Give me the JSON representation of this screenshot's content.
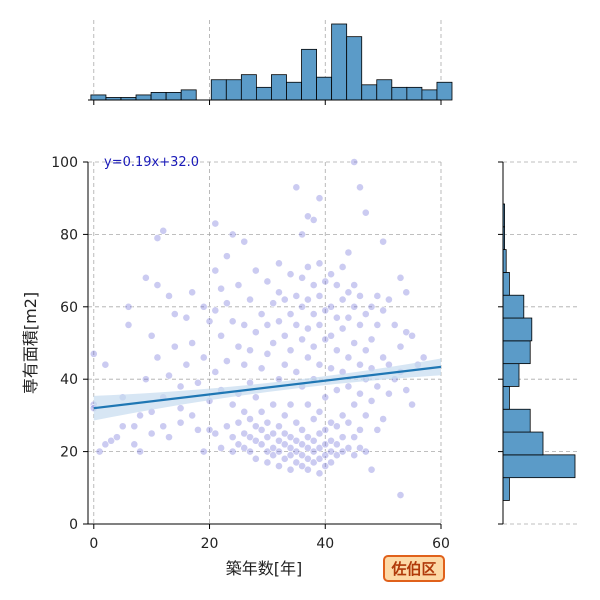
{
  "chart_data": {
    "type": "scatter",
    "xlabel": "築年数[年]",
    "ylabel": "専有面積[m2]",
    "xlim": [
      -1,
      60
    ],
    "ylim": [
      0,
      100
    ],
    "x_ticks": [
      0,
      20,
      40,
      60
    ],
    "y_ticks": [
      0,
      20,
      40,
      60,
      80,
      100
    ],
    "grid": true,
    "regression": {
      "equation": "y=0.19x+32.0",
      "slope": 0.19,
      "intercept": 32.0,
      "color": "#1f77b4",
      "band_color": "#c6dcf0"
    },
    "point_color": "#5050d0",
    "hist_color": "#5b9bc8",
    "badge": {
      "label": "佐伯区",
      "fill": "#fdd9a6",
      "border": "#e0611b",
      "text_color": "#b03a0a"
    },
    "histogram_x": {
      "bin_width": 2.6,
      "start": -0.5,
      "counts": [
        2,
        1,
        1,
        2,
        3,
        3,
        4,
        0,
        8,
        8,
        10,
        5,
        10,
        7,
        20,
        9,
        30,
        25,
        6,
        8,
        5,
        5,
        4,
        7,
        0
      ]
    },
    "histogram_y": {
      "bin_width": 6.3,
      "start": 6.5,
      "counts": [
        4,
        45,
        25,
        17,
        4,
        10,
        17,
        18,
        13,
        4,
        2,
        1,
        1,
        0,
        0
      ]
    },
    "points": [
      [
        0,
        47
      ],
      [
        0,
        33
      ],
      [
        0,
        32
      ],
      [
        1,
        20
      ],
      [
        2,
        22
      ],
      [
        2,
        44
      ],
      [
        3,
        23
      ],
      [
        4,
        24
      ],
      [
        5,
        27
      ],
      [
        5,
        35
      ],
      [
        6,
        60
      ],
      [
        6,
        55
      ],
      [
        7,
        27
      ],
      [
        7,
        22
      ],
      [
        8,
        20
      ],
      [
        8,
        30
      ],
      [
        9,
        68
      ],
      [
        9,
        40
      ],
      [
        10,
        25
      ],
      [
        10,
        52
      ],
      [
        10,
        31
      ],
      [
        11,
        79
      ],
      [
        11,
        66
      ],
      [
        11,
        46
      ],
      [
        12,
        81
      ],
      [
        12,
        27
      ],
      [
        12,
        35
      ],
      [
        13,
        63
      ],
      [
        13,
        41
      ],
      [
        13,
        24
      ],
      [
        14,
        58
      ],
      [
        14,
        49
      ],
      [
        15,
        38
      ],
      [
        15,
        28
      ],
      [
        15,
        32
      ],
      [
        16,
        57
      ],
      [
        16,
        44
      ],
      [
        17,
        64
      ],
      [
        17,
        50
      ],
      [
        17,
        30
      ],
      [
        18,
        39
      ],
      [
        18,
        26
      ],
      [
        19,
        60
      ],
      [
        19,
        46
      ],
      [
        19,
        20
      ],
      [
        20,
        56
      ],
      [
        20,
        34
      ],
      [
        20,
        26
      ],
      [
        21,
        83
      ],
      [
        21,
        70
      ],
      [
        21,
        59
      ],
      [
        21,
        42
      ],
      [
        21,
        25
      ],
      [
        22,
        65
      ],
      [
        22,
        52
      ],
      [
        22,
        37
      ],
      [
        22,
        21
      ],
      [
        23,
        74
      ],
      [
        23,
        61
      ],
      [
        23,
        45
      ],
      [
        23,
        27
      ],
      [
        24,
        80
      ],
      [
        24,
        56
      ],
      [
        24,
        33
      ],
      [
        24,
        24
      ],
      [
        24,
        20
      ],
      [
        25,
        66
      ],
      [
        25,
        49
      ],
      [
        25,
        36
      ],
      [
        25,
        28
      ],
      [
        25,
        22
      ],
      [
        26,
        78
      ],
      [
        26,
        55
      ],
      [
        26,
        44
      ],
      [
        26,
        31
      ],
      [
        26,
        25
      ],
      [
        26,
        21
      ],
      [
        27,
        62
      ],
      [
        27,
        48
      ],
      [
        27,
        39
      ],
      [
        27,
        29
      ],
      [
        27,
        24
      ],
      [
        27,
        20
      ],
      [
        28,
        70
      ],
      [
        28,
        53
      ],
      [
        28,
        35
      ],
      [
        28,
        27
      ],
      [
        28,
        23
      ],
      [
        28,
        18
      ],
      [
        29,
        58
      ],
      [
        29,
        43
      ],
      [
        29,
        31
      ],
      [
        29,
        26
      ],
      [
        29,
        22
      ],
      [
        30,
        67
      ],
      [
        30,
        55
      ],
      [
        30,
        47
      ],
      [
        30,
        28
      ],
      [
        30,
        24
      ],
      [
        30,
        20
      ],
      [
        30,
        17
      ],
      [
        31,
        61
      ],
      [
        31,
        50
      ],
      [
        31,
        33
      ],
      [
        31,
        25
      ],
      [
        31,
        21
      ],
      [
        31,
        19
      ],
      [
        32,
        72
      ],
      [
        32,
        64
      ],
      [
        32,
        56
      ],
      [
        32,
        40
      ],
      [
        32,
        27
      ],
      [
        32,
        23
      ],
      [
        32,
        20
      ],
      [
        32,
        16
      ],
      [
        33,
        62
      ],
      [
        33,
        52
      ],
      [
        33,
        44
      ],
      [
        33,
        30
      ],
      [
        33,
        25
      ],
      [
        33,
        22
      ],
      [
        33,
        18
      ],
      [
        34,
        69
      ],
      [
        34,
        58
      ],
      [
        34,
        48
      ],
      [
        34,
        33
      ],
      [
        34,
        24
      ],
      [
        34,
        21
      ],
      [
        34,
        19
      ],
      [
        34,
        15
      ],
      [
        35,
        93
      ],
      [
        35,
        63
      ],
      [
        35,
        55
      ],
      [
        35,
        42
      ],
      [
        35,
        28
      ],
      [
        35,
        23
      ],
      [
        35,
        20
      ],
      [
        35,
        17
      ],
      [
        36,
        80
      ],
      [
        36,
        68
      ],
      [
        36,
        60
      ],
      [
        36,
        51
      ],
      [
        36,
        38
      ],
      [
        36,
        26
      ],
      [
        36,
        22
      ],
      [
        36,
        19
      ],
      [
        36,
        16
      ],
      [
        37,
        85
      ],
      [
        37,
        71
      ],
      [
        37,
        62
      ],
      [
        37,
        54
      ],
      [
        37,
        46
      ],
      [
        37,
        33
      ],
      [
        37,
        24
      ],
      [
        37,
        21
      ],
      [
        37,
        18
      ],
      [
        37,
        15
      ],
      [
        38,
        84
      ],
      [
        38,
        66
      ],
      [
        38,
        58
      ],
      [
        38,
        49
      ],
      [
        38,
        40
      ],
      [
        38,
        29
      ],
      [
        38,
        23
      ],
      [
        38,
        20
      ],
      [
        38,
        17
      ],
      [
        39,
        90
      ],
      [
        39,
        72
      ],
      [
        39,
        63
      ],
      [
        39,
        55
      ],
      [
        39,
        44
      ],
      [
        39,
        31
      ],
      [
        39,
        25
      ],
      [
        39,
        21
      ],
      [
        39,
        18
      ],
      [
        39,
        14
      ],
      [
        40,
        67
      ],
      [
        40,
        59
      ],
      [
        40,
        51
      ],
      [
        40,
        35
      ],
      [
        40,
        26
      ],
      [
        40,
        22
      ],
      [
        40,
        19
      ],
      [
        40,
        16
      ],
      [
        41,
        69
      ],
      [
        41,
        60
      ],
      [
        41,
        52
      ],
      [
        41,
        43
      ],
      [
        41,
        28
      ],
      [
        41,
        23
      ],
      [
        41,
        20
      ],
      [
        41,
        17
      ],
      [
        42,
        66
      ],
      [
        42,
        57
      ],
      [
        42,
        48
      ],
      [
        42,
        37
      ],
      [
        42,
        27
      ],
      [
        42,
        22
      ],
      [
        42,
        19
      ],
      [
        43,
        71
      ],
      [
        43,
        62
      ],
      [
        43,
        54
      ],
      [
        43,
        42
      ],
      [
        43,
        30
      ],
      [
        43,
        24
      ],
      [
        43,
        20
      ],
      [
        44,
        75
      ],
      [
        44,
        64
      ],
      [
        44,
        57
      ],
      [
        44,
        46
      ],
      [
        44,
        38
      ],
      [
        44,
        28
      ],
      [
        44,
        21
      ],
      [
        45,
        100
      ],
      [
        45,
        66
      ],
      [
        45,
        60
      ],
      [
        45,
        50
      ],
      [
        45,
        33
      ],
      [
        45,
        24
      ],
      [
        45,
        19
      ],
      [
        46,
        93
      ],
      [
        46,
        63
      ],
      [
        46,
        55
      ],
      [
        46,
        44
      ],
      [
        46,
        36
      ],
      [
        46,
        26
      ],
      [
        46,
        21
      ],
      [
        47,
        86
      ],
      [
        47,
        58
      ],
      [
        47,
        48
      ],
      [
        47,
        40
      ],
      [
        47,
        30
      ],
      [
        47,
        20
      ],
      [
        48,
        60
      ],
      [
        48,
        51
      ],
      [
        48,
        43
      ],
      [
        48,
        34
      ],
      [
        48,
        15
      ],
      [
        49,
        63
      ],
      [
        49,
        55
      ],
      [
        49,
        38
      ],
      [
        49,
        26
      ],
      [
        50,
        78
      ],
      [
        50,
        59
      ],
      [
        50,
        46
      ],
      [
        50,
        29
      ],
      [
        51,
        62
      ],
      [
        51,
        44
      ],
      [
        51,
        36
      ],
      [
        52,
        55
      ],
      [
        52,
        40
      ],
      [
        53,
        68
      ],
      [
        53,
        49
      ],
      [
        53,
        42
      ],
      [
        53,
        8
      ],
      [
        54,
        64
      ],
      [
        54,
        53
      ],
      [
        54,
        37
      ],
      [
        55,
        52
      ],
      [
        55,
        33
      ],
      [
        56,
        44
      ],
      [
        57,
        46
      ]
    ]
  }
}
